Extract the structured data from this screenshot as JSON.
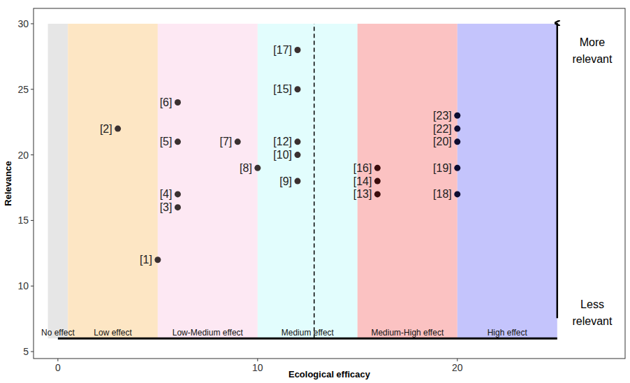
{
  "chart_data": {
    "type": "scatter",
    "x_label": "Ecological efficacy",
    "y_label": "Relevance",
    "xlim": [
      -1.22,
      28.4
    ],
    "ylim": [
      4.47,
      31.17
    ],
    "xticks": [
      0,
      10,
      20
    ],
    "yticks": [
      5,
      10,
      15,
      20,
      25,
      30
    ],
    "grid": false,
    "point_labels": [
      "[1]",
      "[2]",
      "[3]",
      "[4]",
      "[5]",
      "[6]",
      "[7]",
      "[8]",
      "[9]",
      "[10]",
      "[12]",
      "[13]",
      "[14]",
      "[15]",
      "[16]",
      "[17]",
      "[18]",
      "[19]",
      "[20]",
      "[22]",
      "[23]"
    ],
    "x": [
      5,
      3,
      6,
      6,
      6,
      6,
      9,
      10,
      12,
      12,
      12,
      16,
      16,
      12,
      16,
      12,
      20,
      20,
      20,
      20,
      20
    ],
    "values": [
      12,
      22,
      16,
      17,
      21,
      24,
      21,
      19,
      18,
      20,
      21,
      17,
      18,
      25,
      19,
      28,
      17,
      19,
      21,
      22,
      23
    ],
    "colors": [
      "#3a3030",
      "#3a3030",
      "#3a3030",
      "#3a3030",
      "#3a3030",
      "#3a3030",
      "#3a3030",
      "#3a3030",
      "#3a3030",
      "#3a3030",
      "#3a3030",
      "#3a0c0c",
      "#3a0c0c",
      "#3a3030",
      "#3a0c0c",
      "#3a3030",
      "#0c0c30",
      "#0c0c30",
      "#0c0c30",
      "#0c0c30",
      "#0c0c30"
    ],
    "bands": {
      "labels": [
        "No effect",
        "Low effect",
        "Low-Medium effect",
        "Medium effect",
        "Medium-High effect",
        "High effect"
      ],
      "from": [
        -0.5,
        0.5,
        5,
        10,
        15,
        20
      ],
      "to": [
        0.5,
        5,
        10,
        15,
        20,
        25
      ],
      "colors": [
        "#e6e6e6",
        "#fde6c4",
        "#fde8f3",
        "#e2fdfd",
        "#fbc2c2",
        "#c4c4fc"
      ],
      "ymin": 6,
      "ymax": 30
    },
    "threshold": 12.83,
    "annotations": [
      "More relevant",
      "Less relevant"
    ]
  }
}
